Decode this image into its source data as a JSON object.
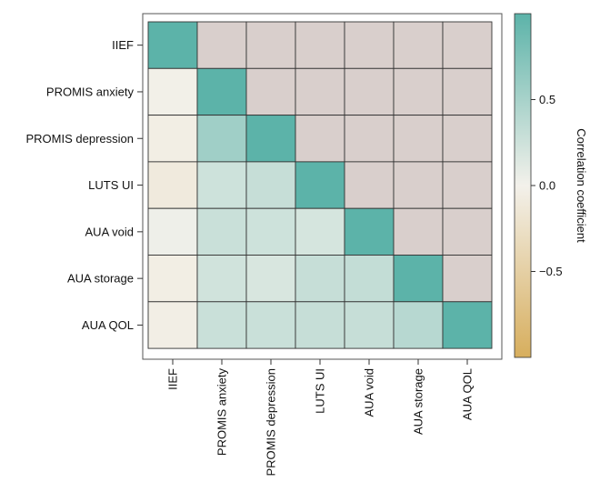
{
  "chart_data": {
    "type": "heatmap",
    "title": "",
    "xlabel": "",
    "ylabel": "",
    "rows": [
      "IIEF",
      "PROMIS anxiety",
      "PROMIS depression",
      "LUTS UI",
      "AUA void",
      "AUA storage",
      "AUA QOL"
    ],
    "columns": [
      "IIEF",
      "PROMIS anxiety",
      "PROMIS depression",
      "LUTS UI",
      "AUA void",
      "AUA storage",
      "AUA QOL"
    ],
    "upper_triangle": "masked",
    "values": [
      [
        1.0,
        null,
        null,
        null,
        null,
        null,
        null
      ],
      [
        -0.02,
        1.0,
        null,
        null,
        null,
        null,
        null
      ],
      [
        -0.05,
        0.55,
        1.0,
        null,
        null,
        null,
        null
      ],
      [
        -0.1,
        0.25,
        0.3,
        1.0,
        null,
        null,
        null
      ],
      [
        0.03,
        0.28,
        0.25,
        0.2,
        1.0,
        null,
        null
      ],
      [
        -0.05,
        0.23,
        0.18,
        0.3,
        0.32,
        1.0,
        null
      ],
      [
        -0.04,
        0.28,
        0.28,
        0.3,
        0.3,
        0.4,
        1.0
      ]
    ],
    "colorbar": {
      "title": "Correlation coefficient",
      "ticks": [
        "0.5",
        "0.0",
        "−0.5"
      ],
      "tick_values": [
        0.5,
        0.0,
        -0.5
      ],
      "range": [
        -1.0,
        1.0
      ]
    },
    "colors": {
      "high": "#5cb3a9",
      "zero": "#f3f1eb",
      "low": "#d7ae5d",
      "mask": "#d9cfcc",
      "border": "#333333"
    }
  }
}
